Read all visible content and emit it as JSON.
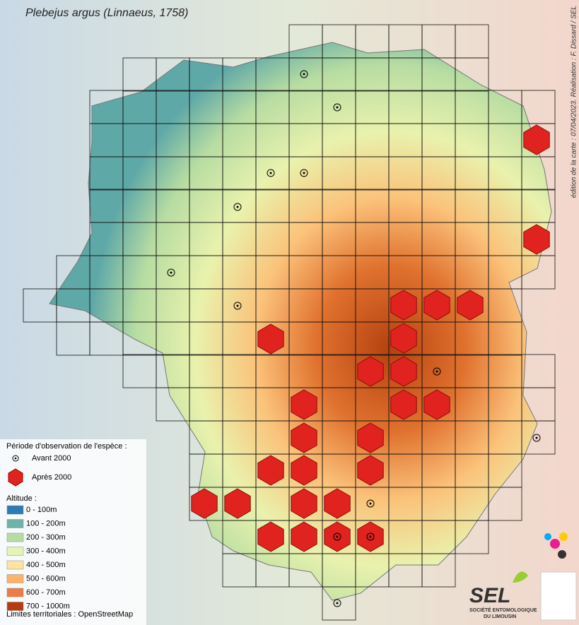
{
  "title": "Plebejus argus (Linnaeus, 1758)",
  "credit": "édition de la carte : 07/04/2023. Réalisation : F. Dissard / SEL",
  "legend": {
    "period_title": "Période d'observation de l'espèce :",
    "before": "Avant 2000",
    "after": "Après 2000",
    "altitude_title": "Altitude :",
    "altitude_classes": [
      {
        "label": "0 - 100m",
        "color": "#2c7bb6"
      },
      {
        "label": "100 - 200m",
        "color": "#6db3a8"
      },
      {
        "label": "200 - 300m",
        "color": "#b5dca5"
      },
      {
        "label": "300 - 400m",
        "color": "#e6f3b4"
      },
      {
        "label": "400 - 500m",
        "color": "#fde4a0"
      },
      {
        "label": "500 - 600m",
        "color": "#fdb36a"
      },
      {
        "label": "600 - 700m",
        "color": "#f07a45"
      },
      {
        "label": "700 - 1000m",
        "color": "#b83a10"
      }
    ],
    "source": "Limites territoriales : OpenStreetMap"
  },
  "logo": {
    "name": "SEL",
    "subtitle_1": "SOCIÉTÉ ENTOMOLOGIQUE",
    "subtitle_2": "DU LIMOUSIN"
  }
}
